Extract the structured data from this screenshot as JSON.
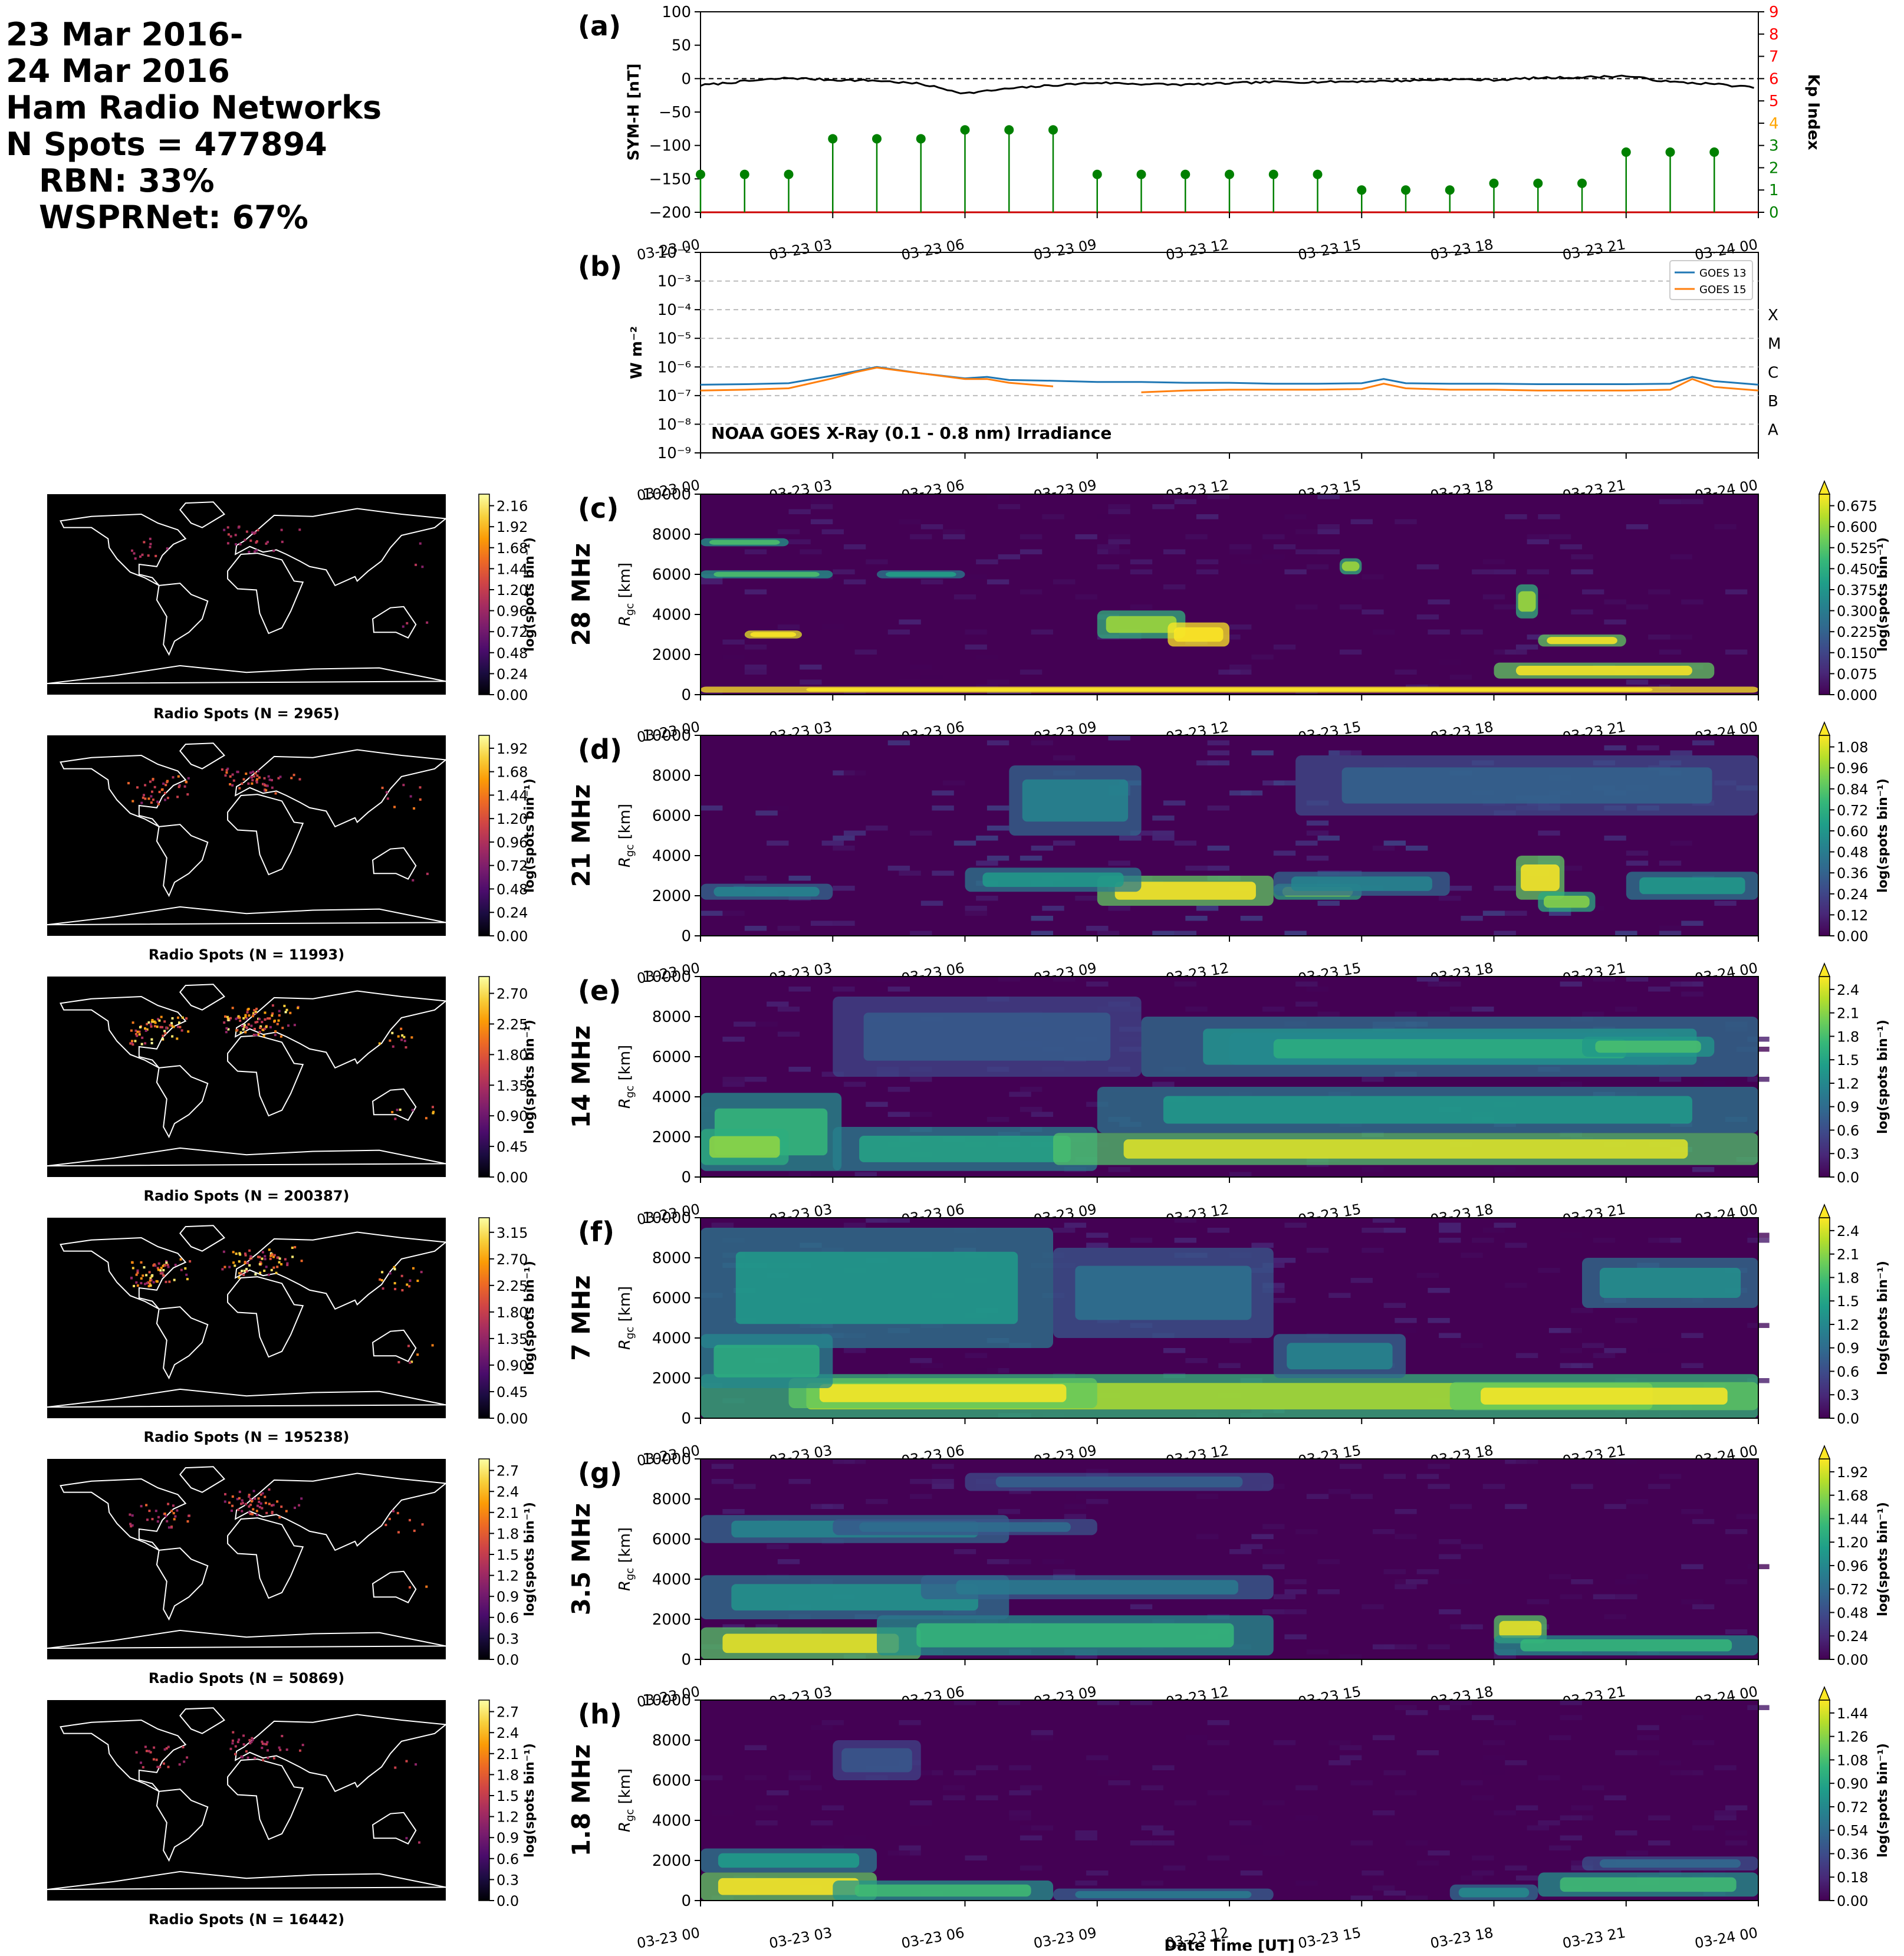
{
  "header": {
    "line1": "23 Mar 2016-",
    "line2": "24 Mar 2016",
    "line3": "Ham Radio Networks",
    "line4": "N Spots = 477894",
    "line5": "RBN: 33%",
    "line6": "WSPRNet: 67%"
  },
  "time_ticks": [
    "03-23 00",
    "03-23 03",
    "03-23 06",
    "03-23 09",
    "03-23 12",
    "03-23 15",
    "03-23 18",
    "03-23 21",
    "03-24 00"
  ],
  "xlabel": "Date Time [UT]",
  "map_colorbar_label": "log(spots bin⁻¹)",
  "colors": {
    "inferno": [
      "#000004",
      "#1b0c41",
      "#4a0c6b",
      "#781c6d",
      "#a52c60",
      "#cf4446",
      "#ed6925",
      "#fb9b06",
      "#f7d13d",
      "#fcffa4"
    ],
    "viridis": [
      "#440154",
      "#482878",
      "#3e4989",
      "#31688e",
      "#26828e",
      "#1f9e89",
      "#35b779",
      "#6ece58",
      "#b5de2b",
      "#fde725"
    ],
    "symh_line": "#000000",
    "kp_stem": "#008000",
    "goes13": "#1f77b4",
    "goes15": "#ff7f0e",
    "kp_axis": "#ff0000"
  },
  "chart_data": [
    {
      "panel": "(a)",
      "type": "line",
      "ylabel": "SYM-H [nT]",
      "ylim": [
        -200,
        100
      ],
      "yticks": [
        "100",
        "50",
        "0",
        "−50",
        "−100",
        "−150",
        "−200"
      ],
      "x": [
        0,
        1,
        2,
        3,
        4,
        5,
        6,
        7,
        8,
        9,
        10,
        11,
        12,
        13,
        14,
        15,
        16,
        17,
        18,
        19,
        20,
        21,
        22,
        23,
        24
      ],
      "series": [
        {
          "values": [
            -10,
            -4,
            1,
            -2,
            -3,
            -8,
            -22,
            -15,
            -10,
            -6,
            -8,
            -9,
            -7,
            -5,
            -5,
            -4,
            -3,
            -1,
            -2,
            1,
            2,
            4,
            -5,
            -8,
            -14
          ]
        }
      ],
      "reference_line": 0,
      "secondary_axis": {
        "ylabel": "Kp Index",
        "ylim": [
          0,
          9
        ],
        "ticks": [
          "0",
          "1",
          "2",
          "3",
          "4",
          "5",
          "6",
          "7",
          "8",
          "9"
        ],
        "tick_colors": [
          "#008000",
          "#008000",
          "#008000",
          "#008000",
          "#ffa500",
          "#ff0000",
          "#ff0000",
          "#ff0000",
          "#ff0000",
          "#ff0000"
        ],
        "type": "scatter-stem",
        "x": [
          0,
          1,
          2,
          3,
          4,
          5,
          6,
          7,
          8,
          9,
          10,
          11,
          12,
          13,
          14,
          15,
          16,
          17,
          18,
          19,
          20,
          21,
          22,
          23
        ],
        "values": [
          1.7,
          1.7,
          1.7,
          3.3,
          3.3,
          3.3,
          3.7,
          3.7,
          3.7,
          1.7,
          1.7,
          1.7,
          1.7,
          1.7,
          1.7,
          1.0,
          1.0,
          1.0,
          1.3,
          1.3,
          1.3,
          2.7,
          2.7,
          2.7
        ]
      }
    },
    {
      "panel": "(b)",
      "type": "line",
      "ylabel": "W m⁻²",
      "yscale": "log",
      "ylim": [
        1e-09,
        0.01
      ],
      "yticks": [
        "10⁻²",
        "10⁻³",
        "10⁻⁴",
        "10⁻⁵",
        "10⁻⁶",
        "10⁻⁷",
        "10⁻⁸",
        "10⁻⁹"
      ],
      "flare_classes": [
        "X",
        "M",
        "C",
        "B",
        "A"
      ],
      "annotation": "NOAA GOES X-Ray (0.1 - 0.8 nm) Irradiance",
      "x": [
        0,
        1,
        2,
        3,
        3.5,
        4,
        5,
        6,
        6.5,
        7,
        8,
        9,
        10,
        11,
        12,
        13,
        14,
        15,
        15.5,
        16,
        17,
        18,
        19,
        20,
        21,
        22,
        22.5,
        23,
        24
      ],
      "series": [
        {
          "name": "GOES 13",
          "values": [
            2.4e-07,
            2.5e-07,
            2.7e-07,
            5e-07,
            7e-07,
            1e-06,
            6e-07,
            4e-07,
            4.5e-07,
            3.5e-07,
            3.3e-07,
            3e-07,
            3e-07,
            2.8e-07,
            2.8e-07,
            2.6e-07,
            2.6e-07,
            2.7e-07,
            3.8e-07,
            2.7e-07,
            2.6e-07,
            2.6e-07,
            2.5e-07,
            2.5e-07,
            2.5e-07,
            2.6e-07,
            4.5e-07,
            3.2e-07,
            2.4e-07
          ]
        },
        {
          "name": "GOES 15",
          "values": [
            1.5e-07,
            1.6e-07,
            1.8e-07,
            4e-07,
            6.5e-07,
            9.5e-07,
            6e-07,
            3.8e-07,
            3.8e-07,
            2.8e-07,
            2.1e-07,
            null,
            1.3e-07,
            1.5e-07,
            1.6e-07,
            1.6e-07,
            1.6e-07,
            1.7e-07,
            2.6e-07,
            1.8e-07,
            1.6e-07,
            1.6e-07,
            1.5e-07,
            1.5e-07,
            1.5e-07,
            1.6e-07,
            3.8e-07,
            2e-07,
            1.5e-07
          ]
        }
      ]
    },
    {
      "panel": "(c)",
      "type": "heatmap",
      "band": "28 MHz",
      "ylabel": "R_gc [km]",
      "ylim": [
        0,
        10000
      ],
      "yticks": [
        "0",
        "2000",
        "4000",
        "6000",
        "8000",
        "10000"
      ],
      "map_label": "Radio Spots (N = 2965)",
      "map_colorbar": [
        "0.00",
        "0.24",
        "0.48",
        "0.72",
        "0.96",
        "1.20",
        "1.44",
        "1.68",
        "1.92",
        "2.16"
      ],
      "colorbar": [
        "0.000",
        "0.075",
        "0.150",
        "0.225",
        "0.300",
        "0.375",
        "0.450",
        "0.525",
        "0.600",
        "0.675"
      ],
      "zmax": 0.7,
      "blobs": [
        [
          0,
          24,
          100,
          400,
          1.0
        ],
        [
          1,
          2.3,
          2800,
          3200,
          0.9
        ],
        [
          9,
          11,
          2800,
          4200,
          0.6
        ],
        [
          10.6,
          12,
          2400,
          3600,
          1.0
        ],
        [
          18,
          23,
          800,
          1600,
          0.7
        ],
        [
          19,
          21,
          2400,
          3000,
          0.7
        ],
        [
          0,
          3,
          5800,
          6200,
          0.5
        ],
        [
          4,
          6,
          5800,
          6200,
          0.4
        ],
        [
          0,
          2,
          7400,
          7800,
          0.5
        ],
        [
          18.5,
          19,
          3800,
          5500,
          0.6
        ],
        [
          14.5,
          15,
          6000,
          6800,
          0.6
        ]
      ],
      "noise": 0.08,
      "hf": [
        0,
        24,
        0,
        0,
        0
      ]
    },
    {
      "panel": "(d)",
      "type": "heatmap",
      "band": "21 MHz",
      "ylabel": "R_gc [km]",
      "ylim": [
        0,
        10000
      ],
      "yticks": [
        "0",
        "2000",
        "4000",
        "6000",
        "8000",
        "10000"
      ],
      "map_label": "Radio Spots (N = 11993)",
      "map_colorbar": [
        "0.00",
        "0.24",
        "0.48",
        "0.72",
        "0.96",
        "1.20",
        "1.44",
        "1.68",
        "1.92"
      ],
      "colorbar": [
        "0.00",
        "0.12",
        "0.24",
        "0.36",
        "0.48",
        "0.60",
        "0.72",
        "0.84",
        "0.96",
        "1.08"
      ],
      "zmax": 1.1,
      "blobs": [
        [
          9,
          13,
          1500,
          3000,
          1.1
        ],
        [
          13,
          15,
          1800,
          2600,
          0.9
        ],
        [
          18.5,
          19.6,
          1800,
          4000,
          1.1
        ],
        [
          19,
          20.3,
          1200,
          2200,
          0.9
        ],
        [
          6,
          10,
          2200,
          3400,
          0.6
        ],
        [
          21,
          24,
          1800,
          3200,
          0.6
        ],
        [
          7,
          10,
          5000,
          8500,
          0.5
        ],
        [
          0,
          3,
          1800,
          2600,
          0.5
        ],
        [
          13,
          17,
          2000,
          3200,
          0.5
        ],
        [
          13.5,
          24,
          6000,
          9000,
          0.35
        ]
      ],
      "noise": 0.25,
      "hf": [
        0,
        24,
        0,
        0,
        0
      ]
    },
    {
      "panel": "(e)",
      "type": "heatmap",
      "band": "14 MHz",
      "ylabel": "R_gc [km]",
      "ylim": [
        0,
        10000
      ],
      "yticks": [
        "0",
        "2000",
        "4000",
        "6000",
        "8000",
        "10000"
      ],
      "map_label": "Radio Spots (N = 200387)",
      "map_colorbar": [
        "0.00",
        "0.45",
        "0.90",
        "1.35",
        "1.80",
        "2.25",
        "2.70"
      ],
      "colorbar": [
        "0.0",
        "0.3",
        "0.6",
        "0.9",
        "1.2",
        "1.5",
        "1.8",
        "2.1",
        "2.4"
      ],
      "zmax": 2.4,
      "blobs": [
        [
          0,
          3.2,
          300,
          4200,
          1.6
        ],
        [
          0,
          2,
          600,
          2400,
          2.0
        ],
        [
          3,
          9,
          300,
          2500,
          1.4
        ],
        [
          8,
          24,
          600,
          2200,
          2.3
        ],
        [
          9,
          24,
          2200,
          4500,
          1.3
        ],
        [
          10,
          24,
          5000,
          8000,
          1.2
        ],
        [
          12,
          22,
          5600,
          7200,
          1.5
        ],
        [
          3,
          10,
          5000,
          9000,
          0.7
        ],
        [
          20,
          23,
          6000,
          7000,
          1.7
        ]
      ],
      "noise": 0.3,
      "hf": [
        0,
        24,
        0,
        0,
        0
      ]
    },
    {
      "panel": "(f)",
      "type": "heatmap",
      "band": "7 MHz",
      "ylabel": "R_gc [km]",
      "ylim": [
        0,
        10000
      ],
      "yticks": [
        "0",
        "2000",
        "4000",
        "6000",
        "8000",
        "10000"
      ],
      "map_label": "Radio Spots (N = 195238)",
      "map_colorbar": [
        "0.00",
        "0.45",
        "0.90",
        "1.35",
        "1.80",
        "2.25",
        "2.70",
        "3.15"
      ],
      "colorbar": [
        "0.0",
        "0.3",
        "0.6",
        "0.9",
        "1.2",
        "1.5",
        "1.8",
        "2.1",
        "2.4"
      ],
      "zmax": 2.4,
      "blobs": [
        [
          0,
          24,
          0,
          2200,
          2.1
        ],
        [
          2,
          9,
          500,
          2000,
          2.4
        ],
        [
          17,
          24,
          400,
          1800,
          2.4
        ],
        [
          0,
          8,
          3500,
          9500,
          1.3
        ],
        [
          8,
          13,
          4000,
          8500,
          0.9
        ],
        [
          20,
          24,
          5500,
          8000,
          1.2
        ],
        [
          13,
          16,
          2000,
          4200,
          1.1
        ],
        [
          0,
          3,
          1500,
          4200,
          1.5
        ]
      ],
      "noise": 0.3,
      "hf": [
        0,
        24,
        0,
        0,
        0
      ]
    },
    {
      "panel": "(g)",
      "type": "heatmap",
      "band": "3.5 MHz",
      "ylabel": "R_gc [km]",
      "ylim": [
        0,
        10000
      ],
      "yticks": [
        "0",
        "2000",
        "4000",
        "6000",
        "8000",
        "10000"
      ],
      "map_label": "Radio Spots (N = 50869)",
      "map_colorbar": [
        "0.0",
        "0.3",
        "0.6",
        "0.9",
        "1.2",
        "1.5",
        "1.8",
        "2.1",
        "2.4",
        "2.7"
      ],
      "colorbar": [
        "0.00",
        "0.24",
        "0.48",
        "0.72",
        "0.96",
        "1.20",
        "1.44",
        "1.68",
        "1.92"
      ],
      "zmax": 1.95,
      "blobs": [
        [
          0,
          5,
          0,
          1600,
          1.9
        ],
        [
          4,
          13,
          200,
          2200,
          1.3
        ],
        [
          0,
          7,
          2000,
          4200,
          1.0
        ],
        [
          5,
          13,
          3000,
          4200,
          0.8
        ],
        [
          0,
          7,
          5800,
          7200,
          0.9
        ],
        [
          6,
          13,
          8400,
          9300,
          0.6
        ],
        [
          18,
          19.2,
          800,
          2200,
          1.9
        ],
        [
          18,
          24,
          200,
          1200,
          1.3
        ],
        [
          3,
          9,
          6200,
          7000,
          0.7
        ]
      ],
      "noise": 0.2,
      "hf": [
        0,
        24,
        0,
        0,
        0
      ]
    },
    {
      "panel": "(h)",
      "type": "heatmap",
      "band": "1.8 MHz",
      "ylabel": "R_gc [km]",
      "ylim": [
        0,
        10000
      ],
      "yticks": [
        "0",
        "2000",
        "4000",
        "6000",
        "8000",
        "10000"
      ],
      "map_label": "Radio Spots (N = 16442)",
      "map_colorbar": [
        "0.0",
        "0.3",
        "0.6",
        "0.9",
        "1.2",
        "1.5",
        "1.8",
        "2.1",
        "2.4",
        "2.7"
      ],
      "colorbar": [
        "0.00",
        "0.18",
        "0.36",
        "0.54",
        "0.72",
        "0.90",
        "1.08",
        "1.26",
        "1.44"
      ],
      "zmax": 1.45,
      "blobs": [
        [
          0,
          4,
          0,
          1400,
          1.45
        ],
        [
          3,
          8,
          0,
          1000,
          1.0
        ],
        [
          8,
          13,
          0,
          600,
          0.6
        ],
        [
          0,
          4,
          1400,
          2600,
          0.8
        ],
        [
          19,
          24,
          200,
          1400,
          1.0
        ],
        [
          17,
          19,
          0,
          800,
          0.7
        ],
        [
          3,
          5,
          6000,
          8000,
          0.4
        ],
        [
          20,
          24,
          1500,
          2200,
          0.5
        ]
      ],
      "noise": 0.12,
      "hf": [
        0,
        24,
        0,
        0,
        0
      ]
    }
  ]
}
